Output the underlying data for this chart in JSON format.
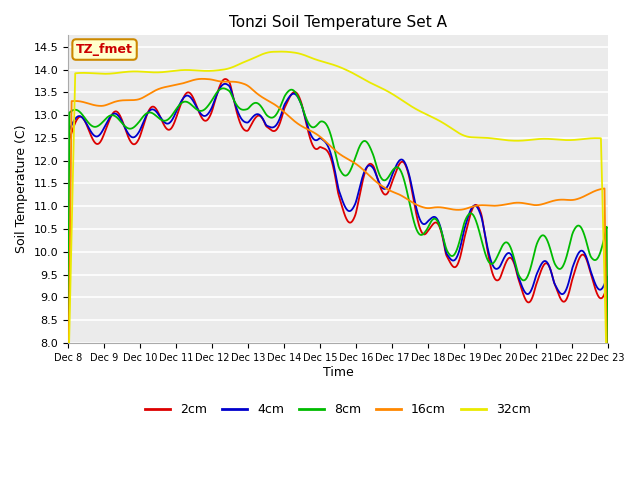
{
  "title": "Tonzi Soil Temperature Set A",
  "xlabel": "Time",
  "ylabel": "Soil Temperature (C)",
  "ylim": [
    8.0,
    14.75
  ],
  "yticks": [
    8.0,
    8.5,
    9.0,
    9.5,
    10.0,
    10.5,
    11.0,
    11.5,
    12.0,
    12.5,
    13.0,
    13.5,
    14.0,
    14.5
  ],
  "bg_color": "#ebebeb",
  "annotation_box": "TZ_fmet",
  "annotation_color": "#cc0000",
  "annotation_bg": "#ffffcc",
  "annotation_border": "#cc8800",
  "colors": {
    "2cm": "#dd0000",
    "4cm": "#0000cc",
    "8cm": "#00bb00",
    "16cm": "#ff8800",
    "32cm": "#eaea00"
  },
  "legend_labels": [
    "2cm",
    "4cm",
    "8cm",
    "16cm",
    "32cm"
  ]
}
